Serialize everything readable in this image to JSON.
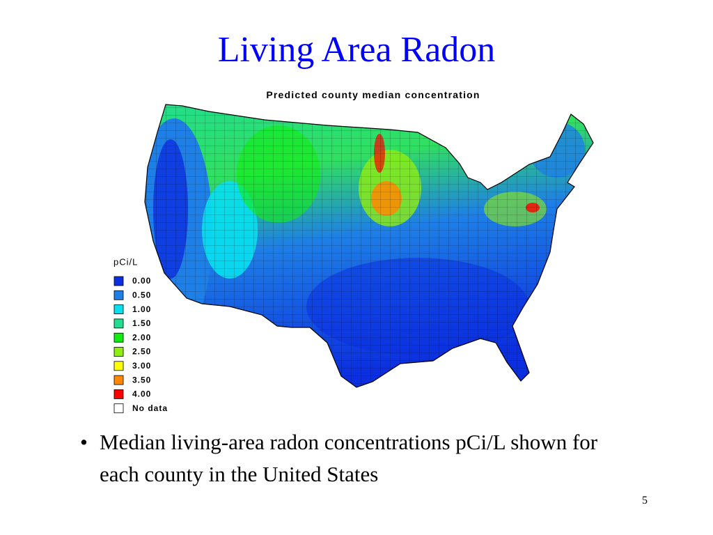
{
  "slide": {
    "title": "Living Area Radon",
    "map": {
      "title": "Predicted county median concentration",
      "legend": {
        "title": "pCi/L",
        "items": [
          {
            "label": "0.00",
            "color": "#0b2fe0"
          },
          {
            "label": "0.50",
            "color": "#1e7fe6"
          },
          {
            "label": "1.00",
            "color": "#08e0f0"
          },
          {
            "label": "1.50",
            "color": "#20dd90"
          },
          {
            "label": "2.00",
            "color": "#10ee10"
          },
          {
            "label": "2.50",
            "color": "#90ee10"
          },
          {
            "label": "3.00",
            "color": "#ffff00"
          },
          {
            "label": "3.50",
            "color": "#ff8800"
          },
          {
            "label": "4.00",
            "color": "#ff0000"
          },
          {
            "label": "No data",
            "color": "#ffffff"
          }
        ]
      }
    },
    "bullets": [
      "Median living-area radon concentrations pCi/L shown for each county in the United States"
    ],
    "page_number": "5"
  }
}
